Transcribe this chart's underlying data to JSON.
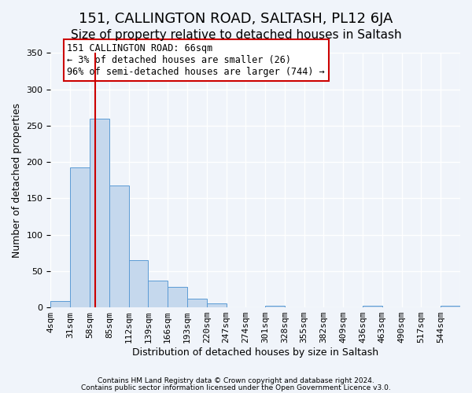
{
  "title": "151, CALLINGTON ROAD, SALTASH, PL12 6JA",
  "subtitle": "Size of property relative to detached houses in Saltash",
  "xlabel": "Distribution of detached houses by size in Saltash",
  "ylabel": "Number of detached properties",
  "bin_labels": [
    "4sqm",
    "31sqm",
    "58sqm",
    "85sqm",
    "112sqm",
    "139sqm",
    "166sqm",
    "193sqm",
    "220sqm",
    "247sqm",
    "274sqm",
    "301sqm",
    "328sqm",
    "355sqm",
    "382sqm",
    "409sqm",
    "436sqm",
    "463sqm",
    "490sqm",
    "517sqm",
    "544sqm"
  ],
  "bar_values": [
    9,
    192,
    260,
    168,
    65,
    37,
    28,
    12,
    5,
    0,
    0,
    2,
    0,
    0,
    0,
    0,
    2,
    0,
    0,
    0,
    2
  ],
  "bar_color": "#c5d8ed",
  "bar_edge_color": "#5b9bd5",
  "vline_x": 66,
  "vline_color": "#cc0000",
  "annotation_text": "151 CALLINGTON ROAD: 66sqm\n← 3% of detached houses are smaller (26)\n96% of semi-detached houses are larger (744) →",
  "annotation_box_color": "#ffffff",
  "annotation_box_edge": "#cc0000",
  "ylim": [
    0,
    350
  ],
  "footer1": "Contains HM Land Registry data © Crown copyright and database right 2024.",
  "footer2": "Contains public sector information licensed under the Open Government Licence v3.0.",
  "background_color": "#f0f4fa",
  "grid_color": "#ffffff",
  "title_fontsize": 13,
  "subtitle_fontsize": 11,
  "axis_label_fontsize": 9,
  "tick_fontsize": 8
}
